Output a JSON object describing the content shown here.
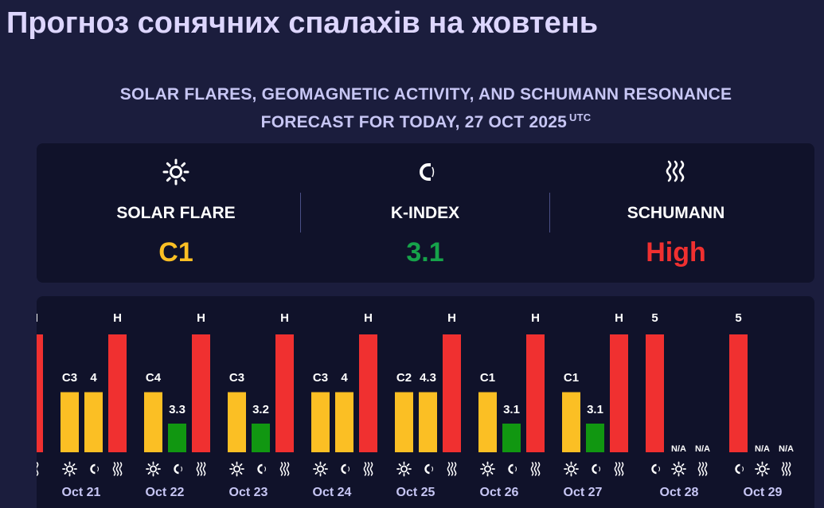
{
  "header": {
    "title": "Прогноз сонячних спалахів на жовтень",
    "subtitle_line1": "SOLAR FLARES, GEOMAGNETIC ACTIVITY, AND SCHUMANN RESONANCE",
    "subtitle_line2": "FORECAST FOR TODAY, 27 OCT 2025",
    "subtitle_sup": "UTC"
  },
  "summary": {
    "solar_flare": {
      "label": "SOLAR FLARE",
      "value": "C1",
      "color": "#fbbf24",
      "icon": "sun-icon"
    },
    "k_index": {
      "label": "K-INDEX",
      "value": "3.1",
      "color": "#16a34a",
      "icon": "magnet-icon"
    },
    "schumann": {
      "label": "SCHUMANN",
      "value": "High",
      "color": "#f03030",
      "icon": "waves-icon"
    }
  },
  "colors": {
    "flare": "#fbbf24",
    "kindex_high": "#fbbf24",
    "kindex_low": "#119711",
    "schumann": "#f03030"
  },
  "chart_data": {
    "type": "bar",
    "title": "",
    "series": [
      {
        "name": "SOLAR FLARE",
        "key": "flare"
      },
      {
        "name": "K-INDEX",
        "key": "kindex"
      },
      {
        "name": "SCHUMANN",
        "key": "schumann"
      }
    ],
    "days": [
      {
        "date": "",
        "flare": null,
        "flare_label": "",
        "kindex": null,
        "kindex_label": "",
        "schumann": "H",
        "schumann_level": 1.0,
        "partial": true
      },
      {
        "date": "Oct 21",
        "flare": "C3",
        "flare_level": 0.51,
        "kindex": 4,
        "kindex_label": "4",
        "schumann": "H",
        "schumann_level": 1.0
      },
      {
        "date": "Oct 22",
        "flare": "C4",
        "flare_level": 0.51,
        "kindex": 3.3,
        "kindex_label": "3.3",
        "schumann": "H",
        "schumann_level": 1.0
      },
      {
        "date": "Oct 23",
        "flare": "C3",
        "flare_level": 0.51,
        "kindex": 3.2,
        "kindex_label": "3.2",
        "schumann": "H",
        "schumann_level": 1.0
      },
      {
        "date": "Oct 24",
        "flare": "C3",
        "flare_level": 0.51,
        "kindex": 4,
        "kindex_label": "4",
        "schumann": "H",
        "schumann_level": 1.0
      },
      {
        "date": "Oct 25",
        "flare": "C2",
        "flare_level": 0.51,
        "kindex": 4.3,
        "kindex_label": "4.3",
        "schumann": "H",
        "schumann_level": 1.0
      },
      {
        "date": "Oct 26",
        "flare": "C1",
        "flare_level": 0.51,
        "kindex": 3.1,
        "kindex_label": "3.1",
        "schumann": "H",
        "schumann_level": 1.0
      },
      {
        "date": "Oct 27",
        "flare": "C1",
        "flare_level": 0.51,
        "kindex": 3.1,
        "kindex_label": "3.1",
        "schumann": "H",
        "schumann_level": 1.0
      },
      {
        "date": "Oct 28",
        "flare": null,
        "flare_label": "",
        "kindex": 5,
        "kindex_label": "5",
        "kindex_na": false,
        "schumann": "N/A",
        "schumann_level": 0,
        "extra_na": "N/A",
        "kindex_is_red": true
      },
      {
        "date": "Oct 29",
        "flare": null,
        "flare_label": "",
        "kindex": 5,
        "kindex_label": "5",
        "kindex_na": false,
        "schumann": "N/A",
        "schumann_level": 0,
        "extra_na": "N/A",
        "kindex_is_red": true
      }
    ]
  }
}
